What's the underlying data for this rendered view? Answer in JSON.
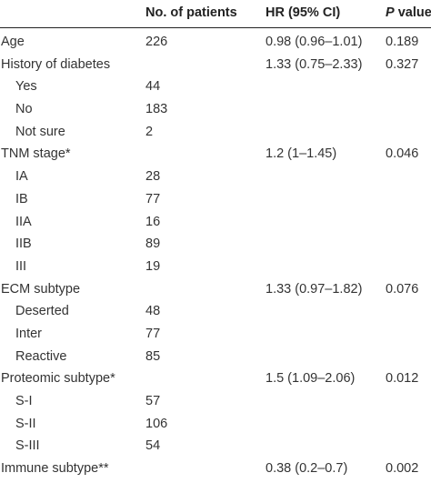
{
  "table": {
    "headers": {
      "col1": "",
      "col2": "No. of patients",
      "col3": "HR (95% CI)",
      "col4_italic": "P",
      "col4_rest": " value"
    },
    "rows": [
      {
        "variable": "Age",
        "n": "226",
        "hr": "0.98 (0.96–1.01)",
        "p": "0.189",
        "indent": false
      },
      {
        "variable": "History of diabetes",
        "n": "",
        "hr": "1.33 (0.75–2.33)",
        "p": "0.327",
        "indent": false
      },
      {
        "variable": "Yes",
        "n": "44",
        "hr": "",
        "p": "",
        "indent": true
      },
      {
        "variable": "No",
        "n": "183",
        "hr": "",
        "p": "",
        "indent": true
      },
      {
        "variable": "Not sure",
        "n": "2",
        "hr": "",
        "p": "",
        "indent": true
      },
      {
        "variable": "TNM stage*",
        "n": "",
        "hr": "1.2 (1–1.45)",
        "p": "0.046",
        "indent": false
      },
      {
        "variable": "IA",
        "n": "28",
        "hr": "",
        "p": "",
        "indent": true
      },
      {
        "variable": "IB",
        "n": "77",
        "hr": "",
        "p": "",
        "indent": true
      },
      {
        "variable": "IIA",
        "n": "16",
        "hr": "",
        "p": "",
        "indent": true
      },
      {
        "variable": "IIB",
        "n": "89",
        "hr": "",
        "p": "",
        "indent": true
      },
      {
        "variable": "III",
        "n": "19",
        "hr": "",
        "p": "",
        "indent": true
      },
      {
        "variable": "ECM subtype",
        "n": "",
        "hr": "1.33 (0.97–1.82)",
        "p": "0.076",
        "indent": false
      },
      {
        "variable": "Deserted",
        "n": "48",
        "hr": "",
        "p": "",
        "indent": true
      },
      {
        "variable": "Inter",
        "n": "77",
        "hr": "",
        "p": "",
        "indent": true
      },
      {
        "variable": "Reactive",
        "n": "85",
        "hr": "",
        "p": "",
        "indent": true
      },
      {
        "variable": "Proteomic subtype*",
        "n": "",
        "hr": "1.5 (1.09–2.06)",
        "p": "0.012",
        "indent": false
      },
      {
        "variable": "S-I",
        "n": "57",
        "hr": "",
        "p": "",
        "indent": true
      },
      {
        "variable": "S-II",
        "n": "106",
        "hr": "",
        "p": "",
        "indent": true
      },
      {
        "variable": "S-III",
        "n": "54",
        "hr": "",
        "p": "",
        "indent": true
      },
      {
        "variable": "Immune subtype**",
        "n": "",
        "hr": "0.38 (0.2–0.7)",
        "p": "0.002",
        "indent": false
      }
    ]
  }
}
